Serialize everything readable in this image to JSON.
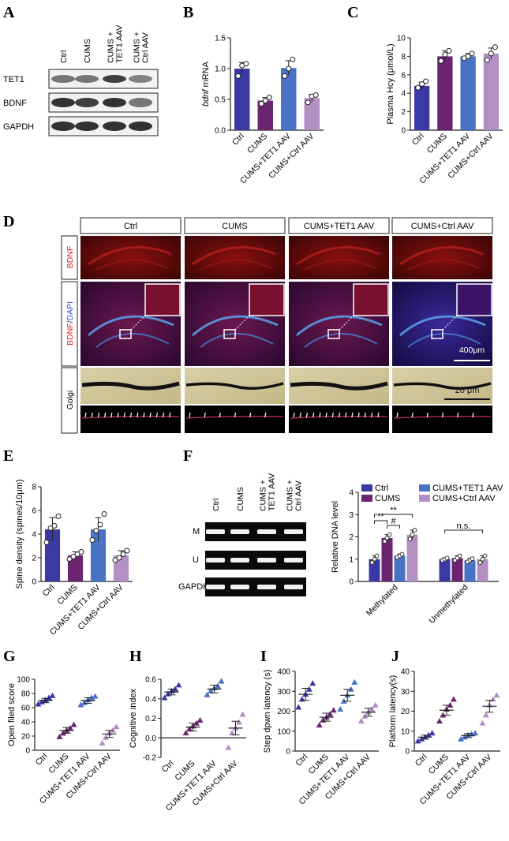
{
  "panels": {
    "A": {
      "letter": "A",
      "lanes": [
        "Ctrl",
        "CUMS",
        "CUMS + TET1 AAV",
        "CUMS + Ctrl AAV"
      ],
      "lane_lines": [
        [
          "Ctrl"
        ],
        [
          "CUMS"
        ],
        [
          "CUMS +",
          "TET1 AAV"
        ],
        [
          "CUMS +",
          "Ctrl AAV"
        ]
      ],
      "rows": [
        "TET1",
        "BDNF",
        "GAPDH"
      ]
    },
    "D": {
      "letter": "D",
      "headers": [
        "Ctrl",
        "CUMS",
        "CUMS+TET1 AAV",
        "CUMS+Ctrl AAV"
      ],
      "row_labels": [
        "BDNF",
        "BDNF/DAPI",
        "Golgi"
      ],
      "row2_label_parts": [
        "BDNF",
        "/",
        "DAPI"
      ],
      "scalebar_1": "400μm",
      "scalebar_2": "20 μm"
    },
    "F_gel": {
      "letter": "F",
      "lanes": [
        "Ctrl",
        "CUMS",
        "CUMS + TET1 AAV",
        "CUMS + Ctrl AAV"
      ],
      "lane_lines": [
        [
          "Ctrl"
        ],
        [
          "CUMS"
        ],
        [
          "CUMS +",
          "TET1 AAV"
        ],
        [
          "CUMS +",
          "Ctrl AAV"
        ]
      ],
      "rows": [
        "M",
        "U",
        "GAPDH"
      ]
    }
  },
  "colors": {
    "ctrl": "#3b3aa5",
    "cums": "#6b2470",
    "tet1": "#4a72c4",
    "ctrlaav": "#b48fc4"
  },
  "chart_data": [
    {
      "id": "B",
      "letter": "B",
      "type": "bar",
      "ylabel": "bdnf mRNA",
      "ylabel_italic": "bdnf",
      "ylabel_rest": " mRNA",
      "categories": [
        "Ctrl",
        "CUMS",
        "CUMS+TET1 AAV",
        "CUMS+Ctrl AAV"
      ],
      "values": [
        1.0,
        0.48,
        1.01,
        0.52
      ],
      "errors": [
        0.1,
        0.05,
        0.12,
        0.06
      ],
      "points": [
        [
          0.88,
          1.05,
          1.08
        ],
        [
          0.43,
          0.48,
          0.53
        ],
        [
          0.88,
          1.0,
          1.15
        ],
        [
          0.45,
          0.55,
          0.57
        ]
      ],
      "ylim": [
        0,
        1.5
      ],
      "yticks": [
        0.0,
        0.5,
        1.0,
        1.5
      ],
      "yticklabels": [
        "0.0",
        "0.5",
        "1.0",
        "1.5"
      ],
      "significance": [
        {
          "from": 0,
          "to": 1,
          "label": "*"
        },
        {
          "from": 1,
          "to": 2,
          "label": "#"
        },
        {
          "from": 0,
          "to": 3,
          "label": "*"
        }
      ]
    },
    {
      "id": "C",
      "letter": "C",
      "type": "bar",
      "ylabel": "Plasma Hcy (μmol/L)",
      "categories": [
        "Ctrl",
        "CUMS",
        "CUMS+TET1 AAV",
        "CUMS+Ctrl AAV"
      ],
      "values": [
        4.8,
        8.0,
        8.0,
        8.3
      ],
      "errors": [
        0.4,
        0.6,
        0.3,
        0.6
      ],
      "points": [
        [
          4.6,
          5.0,
          5.3
        ],
        [
          7.5,
          8.2,
          8.6
        ],
        [
          7.8,
          8.0,
          8.3
        ],
        [
          7.6,
          8.3,
          9.0
        ]
      ],
      "ylim": [
        0,
        10
      ],
      "yticks": [
        0,
        2,
        4,
        6,
        8,
        10
      ],
      "yticklabels": [
        "0",
        "2",
        "4",
        "6",
        "8",
        "10"
      ],
      "significance": [
        {
          "from": 0,
          "to": 2,
          "label": "**"
        }
      ]
    },
    {
      "id": "E",
      "letter": "E",
      "type": "bar",
      "ylabel": "Spine density (spines/10μm)",
      "categories": [
        "Ctrl",
        "CUMS",
        "CUMS+TET1 AAV",
        "CUMS+Ctrl AAV"
      ],
      "values": [
        4.4,
        2.2,
        4.4,
        2.2
      ],
      "errors": [
        1.0,
        0.3,
        1.0,
        0.4
      ],
      "points": [
        [
          3.3,
          4.5,
          4.7,
          5.5
        ],
        [
          1.9,
          2.1,
          2.3,
          2.5
        ],
        [
          3.5,
          4.3,
          4.8,
          5.7
        ],
        [
          1.8,
          2.0,
          2.3,
          2.6
        ]
      ],
      "ylim": [
        0,
        8
      ],
      "yticks": [
        0,
        2,
        4,
        6,
        8
      ],
      "yticklabels": [
        "0",
        "2",
        "4",
        "6",
        "8"
      ],
      "significance": [
        {
          "from": 0,
          "to": 1,
          "label": "**"
        },
        {
          "from": 1,
          "to": 2,
          "label": "#"
        },
        {
          "from": 0,
          "to": 3,
          "label": "**"
        }
      ]
    },
    {
      "id": "F",
      "type": "bar",
      "ylabel": "Relative DNA level",
      "groups": [
        "Methylated",
        "Unmethylated"
      ],
      "series": [
        {
          "name": "Ctrl",
          "values": [
            1.0,
            1.0
          ],
          "errors": [
            0.15,
            0.05
          ],
          "points": [
            [
              0.85,
              1.0,
              1.15
            ],
            [
              0.95,
              1.0,
              1.05
            ]
          ]
        },
        {
          "name": "CUMS",
          "values": [
            1.95,
            1.05
          ],
          "errors": [
            0.15,
            0.1
          ],
          "points": [
            [
              1.8,
              1.95,
              2.1
            ],
            [
              0.95,
              1.05,
              1.15
            ]
          ]
        },
        {
          "name": "CUMS+TET1 AAV",
          "values": [
            1.15,
            0.95
          ],
          "errors": [
            0.08,
            0.08
          ],
          "points": [
            [
              1.08,
              1.15,
              1.22
            ],
            [
              0.88,
              0.95,
              1.02
            ]
          ]
        },
        {
          "name": "CUMS+Ctrl AAV",
          "values": [
            2.1,
            1.0
          ],
          "errors": [
            0.2,
            0.15
          ],
          "points": [
            [
              1.9,
              2.1,
              2.3
            ],
            [
              0.85,
              1.0,
              1.15
            ]
          ]
        }
      ],
      "ylim": [
        0,
        4
      ],
      "yticks": [
        0,
        1,
        2,
        3,
        4
      ],
      "yticklabels": [
        "0",
        "1",
        "2",
        "3",
        "4"
      ],
      "legend_rows": [
        [
          "Ctrl",
          "CUMS+TET1 AAV"
        ],
        [
          "CUMS",
          "CUMS+Ctrl AAV"
        ]
      ],
      "significance": [
        {
          "group": 0,
          "from": 0,
          "to": 1,
          "label": "**"
        },
        {
          "group": 0,
          "from": 1,
          "to": 2,
          "label": "#"
        },
        {
          "group": 0,
          "from": 0,
          "to": 3,
          "label": "**"
        },
        {
          "group": 1,
          "from": 0,
          "to": 3,
          "label": "n.s."
        }
      ]
    },
    {
      "id": "G",
      "letter": "G",
      "type": "scatter",
      "ylabel": "Open filed score",
      "categories": [
        "Ctrl",
        "CUMS",
        "CUMS+TET1 AAV",
        "CUMS+Ctrl AAV"
      ],
      "values": [
        70,
        28,
        70,
        23
      ],
      "errors": [
        3,
        4,
        4,
        5
      ],
      "points": [
        [
          65,
          68,
          71,
          74,
          77
        ],
        [
          19,
          24,
          28,
          31,
          36
        ],
        [
          64,
          67,
          71,
          74,
          76
        ],
        [
          10,
          18,
          24,
          28,
          33
        ]
      ],
      "ylim": [
        0,
        100
      ],
      "yticks": [
        0,
        20,
        40,
        60,
        80,
        100
      ],
      "yticklabels": [
        "0",
        "20",
        "40",
        "60",
        "80",
        "100"
      ],
      "significance": [
        {
          "from": 0,
          "to": 1,
          "label": "**"
        },
        {
          "from": 1,
          "to": 2,
          "label": "##"
        },
        {
          "from": 0,
          "to": 3,
          "label": "**"
        }
      ]
    },
    {
      "id": "H",
      "letter": "H",
      "type": "scatter",
      "ylabel": "Cognitive index",
      "categories": [
        "Ctrl",
        "CUMS",
        "CUMS+TET1 AAV",
        "CUMS+Ctrl AAV"
      ],
      "values": [
        0.47,
        0.11,
        0.5,
        0.1
      ],
      "errors": [
        0.03,
        0.04,
        0.04,
        0.07
      ],
      "points": [
        [
          0.41,
          0.45,
          0.48,
          0.5,
          0.54
        ],
        [
          0.05,
          0.09,
          0.12,
          0.15,
          0.18
        ],
        [
          0.44,
          0.48,
          0.51,
          0.53,
          0.58
        ],
        [
          -0.1,
          0.05,
          0.1,
          0.16,
          0.24
        ]
      ],
      "ylim": [
        -0.2,
        0.6
      ],
      "yticks": [
        -0.2,
        0.0,
        0.2,
        0.4,
        0.6
      ],
      "yticklabels": [
        "-0.2",
        "0.0",
        "0.2",
        "0.4",
        "0.6"
      ],
      "significance": [
        {
          "from": 0,
          "to": 1,
          "label": "**"
        },
        {
          "from": 1,
          "to": 2,
          "label": "##"
        },
        {
          "from": 0,
          "to": 3,
          "label": "**"
        }
      ]
    },
    {
      "id": "I",
      "letter": "I",
      "type": "scatter",
      "ylabel": "Step dpwn latency (s)",
      "categories": [
        "Ctrl",
        "CUMS",
        "CUMS+TET1 AAV",
        "CUMS+Ctrl AAV"
      ],
      "values": [
        285,
        170,
        280,
        195
      ],
      "errors": [
        30,
        20,
        30,
        20
      ],
      "points": [
        [
          220,
          260,
          285,
          310,
          340
        ],
        [
          130,
          155,
          170,
          185,
          205
        ],
        [
          210,
          250,
          280,
          310,
          345
        ],
        [
          150,
          175,
          195,
          210,
          230
        ]
      ],
      "ylim": [
        0,
        400
      ],
      "yticks": [
        0,
        100,
        200,
        300,
        400
      ],
      "yticklabels": [
        "0",
        "100",
        "200",
        "300",
        "400"
      ],
      "significance": [
        {
          "from": 0,
          "to": 1,
          "label": "**"
        },
        {
          "from": 1,
          "to": 2,
          "label": "#"
        },
        {
          "from": 0,
          "to": 3,
          "label": "*"
        }
      ]
    },
    {
      "id": "J",
      "letter": "J",
      "type": "scatter",
      "ylabel": "Platform latency(s)",
      "categories": [
        "Ctrl",
        "CUMS",
        "CUMS+TET1 AAV",
        "CUMS+Ctrl AAV"
      ],
      "values": [
        7,
        20.5,
        7.8,
        22.5
      ],
      "errors": [
        1,
        2.5,
        1,
        3
      ],
      "points": [
        [
          5,
          6,
          7,
          8,
          9
        ],
        [
          15,
          18,
          21,
          23,
          26
        ],
        [
          6,
          7,
          8,
          8.5,
          9
        ],
        [
          14,
          18,
          23,
          26,
          28
        ]
      ],
      "ylim": [
        0,
        40
      ],
      "yticks": [
        0,
        10,
        20,
        30,
        40
      ],
      "yticklabels": [
        "0",
        "10",
        "20",
        "30",
        "40"
      ],
      "significance": [
        {
          "from": 0,
          "to": 1,
          "label": "**"
        },
        {
          "from": 1,
          "to": 2,
          "label": "##"
        },
        {
          "from": 0,
          "to": 3,
          "label": "**"
        }
      ]
    }
  ]
}
